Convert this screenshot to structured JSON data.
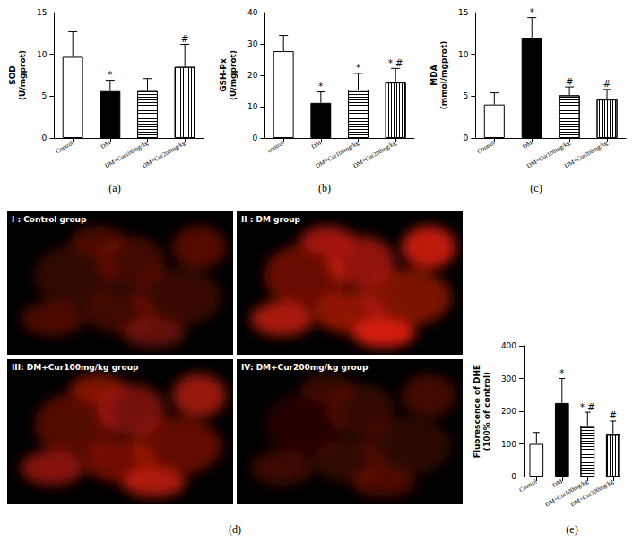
{
  "chart_data": [
    {
      "type": "bar",
      "title": "(a)",
      "y_label": "SOD\n(U/mgprot)",
      "categories": [
        "Control",
        "DM",
        "DM+Cur100mg/kg",
        "DM+Cur200mg/kg"
      ],
      "values": [
        9.7,
        5.6,
        5.6,
        8.5
      ],
      "error": [
        3.0,
        1.3,
        1.5,
        2.7
      ],
      "significance": [
        null,
        "*",
        null,
        "#"
      ],
      "colors": [
        "#ffffff",
        "#000000",
        "#ffffff",
        "#ffffff"
      ],
      "ylim": [
        0,
        15
      ],
      "yticks": [
        0,
        5,
        10,
        15
      ],
      "grid": false
    },
    {
      "type": "bar",
      "title": "(b)",
      "y_label": "GSH-Px\n(U/mgprot)",
      "categories": [
        "control",
        "DM",
        "DM+Cur100mg/kg",
        "DM+Cur200mg/kg"
      ],
      "values": [
        27.7,
        11.2,
        15.4,
        17.7
      ],
      "error": [
        5.0,
        3.5,
        5.2,
        4.5
      ],
      "significance": [
        null,
        "*",
        "*",
        "* #"
      ],
      "colors": [
        "#ffffff",
        "#000000",
        "#ffffff",
        "#ffffff"
      ],
      "ylim": [
        0,
        40
      ],
      "yticks": [
        0,
        10,
        20,
        30,
        40
      ],
      "grid": false
    },
    {
      "type": "bar",
      "title": "(c)",
      "y_label": "MDA\n(mmol/mgprot)",
      "categories": [
        "Control",
        "DM",
        "DM+Cur100mg/kg",
        "DM+Cur200mg/kg"
      ],
      "values": [
        4.0,
        12.0,
        5.1,
        4.6
      ],
      "error": [
        1.4,
        2.4,
        1.0,
        1.2
      ],
      "significance": [
        null,
        "*",
        "#",
        "#"
      ],
      "colors": [
        "#ffffff",
        "#000000",
        "#ffffff",
        "#ffffff"
      ],
      "ylim": [
        0,
        15
      ],
      "yticks": [
        0,
        5,
        10,
        15
      ],
      "grid": false
    },
    {
      "type": "bar",
      "title": "(e)",
      "y_label": "Fluorescence of DHE\n(100% of control)",
      "categories": [
        "Control",
        "DM",
        "DM+Cur100mg/kg",
        "DM+Cur200mg/kg"
      ],
      "values": [
        100,
        225,
        155,
        128
      ],
      "error": [
        35,
        75,
        42,
        42
      ],
      "significance": [
        null,
        "*",
        "* #",
        "#"
      ],
      "colors": [
        "#ffffff",
        "#000000",
        "#ffffff",
        "#ffffff"
      ],
      "ylim": [
        0,
        400
      ],
      "yticks": [
        0,
        100,
        200,
        300,
        400
      ],
      "grid": false
    }
  ],
  "images": {
    "title": "(d)",
    "panels": [
      {
        "label": "I : Control group"
      },
      {
        "label": "II : DM group"
      },
      {
        "label": "III: DM+Cur100mg/kg group"
      },
      {
        "label": "IV: DM+Cur200mg/kg group"
      }
    ]
  }
}
